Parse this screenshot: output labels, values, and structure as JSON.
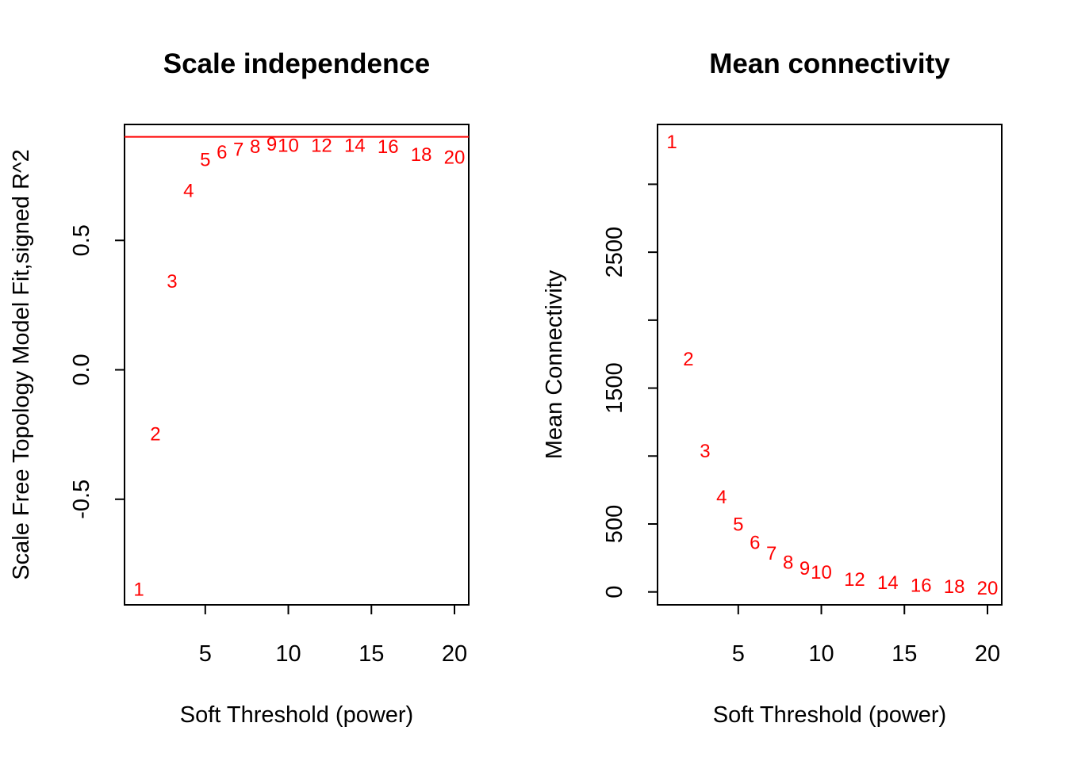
{
  "colors": {
    "points": "#ff0000",
    "cutoff_line": "#ff0000",
    "axes": "#000000"
  },
  "chart_data": [
    {
      "type": "scatter",
      "title": "Scale independence",
      "xlabel": "Soft Threshold (power)",
      "ylabel": "Scale Free Topology Model Fit,signed R^2",
      "xlim": [
        0.14,
        20.86
      ],
      "ylim": [
        -0.908,
        0.948
      ],
      "xticks": [
        5,
        10,
        15,
        20
      ],
      "yticks": [
        -0.5,
        0.0,
        0.5
      ],
      "ytick_labels": [
        "-0.5",
        "0.0",
        "0.5"
      ],
      "hline": 0.9,
      "points": [
        {
          "x": 1,
          "y": -0.85,
          "label": "1"
        },
        {
          "x": 2,
          "y": -0.25,
          "label": "2"
        },
        {
          "x": 3,
          "y": 0.34,
          "label": "3"
        },
        {
          "x": 4,
          "y": 0.69,
          "label": "4"
        },
        {
          "x": 5,
          "y": 0.81,
          "label": "5"
        },
        {
          "x": 6,
          "y": 0.84,
          "label": "6"
        },
        {
          "x": 7,
          "y": 0.85,
          "label": "7"
        },
        {
          "x": 8,
          "y": 0.86,
          "label": "8"
        },
        {
          "x": 9,
          "y": 0.87,
          "label": "9"
        },
        {
          "x": 10,
          "y": 0.865,
          "label": "10"
        },
        {
          "x": 12,
          "y": 0.865,
          "label": "12"
        },
        {
          "x": 14,
          "y": 0.865,
          "label": "14"
        },
        {
          "x": 16,
          "y": 0.86,
          "label": "16"
        },
        {
          "x": 18,
          "y": 0.83,
          "label": "18"
        },
        {
          "x": 20,
          "y": 0.82,
          "label": "20"
        }
      ]
    },
    {
      "type": "scatter",
      "title": "Mean connectivity",
      "xlabel": "Soft Threshold (power)",
      "ylabel": "Mean Connectivity",
      "xlim": [
        0.14,
        20.86
      ],
      "ylim": [
        -95,
        3440
      ],
      "xticks": [
        5,
        10,
        15,
        20
      ],
      "yticks": [
        0,
        500,
        1000,
        1500,
        2000,
        2500,
        3000
      ],
      "ytick_labels": [
        "0",
        "500",
        "",
        "1500",
        "",
        "2500",
        ""
      ],
      "points": [
        {
          "x": 1,
          "y": 3310,
          "label": "1"
        },
        {
          "x": 2,
          "y": 1710,
          "label": "2"
        },
        {
          "x": 3,
          "y": 1035,
          "label": "3"
        },
        {
          "x": 4,
          "y": 695,
          "label": "4"
        },
        {
          "x": 5,
          "y": 495,
          "label": "5"
        },
        {
          "x": 6,
          "y": 360,
          "label": "6"
        },
        {
          "x": 7,
          "y": 280,
          "label": "7"
        },
        {
          "x": 8,
          "y": 215,
          "label": "8"
        },
        {
          "x": 9,
          "y": 170,
          "label": "9"
        },
        {
          "x": 10,
          "y": 140,
          "label": "10"
        },
        {
          "x": 12,
          "y": 90,
          "label": "12"
        },
        {
          "x": 14,
          "y": 65,
          "label": "14"
        },
        {
          "x": 16,
          "y": 45,
          "label": "16"
        },
        {
          "x": 18,
          "y": 35,
          "label": "18"
        },
        {
          "x": 20,
          "y": 25,
          "label": "20"
        }
      ]
    }
  ]
}
